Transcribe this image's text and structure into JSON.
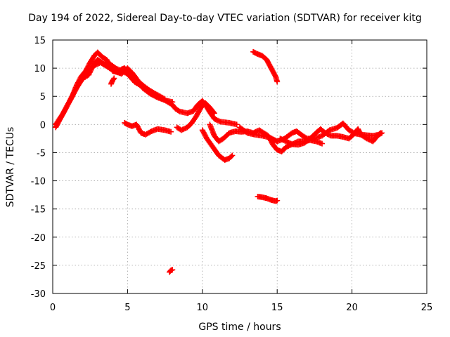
{
  "chart_data": {
    "type": "scatter",
    "title": "Day 194 of 2022, Sidereal Day-to-day VTEC variation (SDTVAR) for receiver kitg",
    "xlabel": "GPS time / hours",
    "ylabel": "SDTVAR / TECUs",
    "xlim": [
      0,
      25
    ],
    "ylim": [
      -30,
      15
    ],
    "xticks": [
      "0",
      "5",
      "10",
      "15",
      "20",
      "25"
    ],
    "yticks": [
      "15",
      "10",
      "5",
      "0",
      "-5",
      "-10",
      "-15",
      "-20",
      "-25",
      "-30"
    ],
    "grid": true,
    "marker_color": "#ff0000",
    "series": [
      {
        "name": "track-main-1",
        "points": [
          [
            0.2,
            0
          ],
          [
            0.4,
            0.8
          ],
          [
            0.7,
            2
          ],
          [
            1.0,
            3.5
          ],
          [
            1.3,
            5
          ],
          [
            1.6,
            7
          ],
          [
            1.9,
            8.5
          ],
          [
            2.2,
            9.5
          ],
          [
            2.5,
            11
          ],
          [
            2.8,
            12.3
          ],
          [
            3.0,
            12.8
          ],
          [
            3.3,
            12
          ],
          [
            3.6,
            11.5
          ],
          [
            3.8,
            10.5
          ],
          [
            4.0,
            9.5
          ],
          [
            4.3,
            9.3
          ],
          [
            4.6,
            9.8
          ],
          [
            4.8,
            10
          ],
          [
            5.0,
            9.5
          ],
          [
            5.3,
            9.2
          ],
          [
            5.6,
            8
          ],
          [
            6.0,
            7
          ],
          [
            6.5,
            6
          ],
          [
            7.0,
            5
          ],
          [
            7.5,
            4.3
          ],
          [
            8.0,
            3.5
          ],
          [
            8.2,
            2.8
          ],
          [
            8.5,
            2.3
          ],
          [
            9.0,
            2
          ],
          [
            9.4,
            2.4
          ],
          [
            9.7,
            3.5
          ],
          [
            10.0,
            4.2
          ],
          [
            10.2,
            3.5
          ],
          [
            10.5,
            2.2
          ],
          [
            10.8,
            1
          ],
          [
            11.2,
            0.5
          ],
          [
            11.8,
            0.3
          ],
          [
            12.3,
            0
          ]
        ]
      },
      {
        "name": "track-main-2",
        "points": [
          [
            2.0,
            8
          ],
          [
            2.4,
            9.5
          ],
          [
            2.8,
            10.5
          ],
          [
            3.2,
            11
          ],
          [
            3.5,
            10.5
          ],
          [
            3.8,
            10
          ],
          [
            4.0,
            9.8
          ],
          [
            4.3,
            9.3
          ],
          [
            4.6,
            9
          ],
          [
            5.0,
            10
          ],
          [
            5.5,
            8.5
          ],
          [
            6.0,
            6.5
          ],
          [
            6.5,
            5.5
          ],
          [
            7.0,
            4.8
          ],
          [
            7.5,
            4.3
          ],
          [
            8.0,
            4
          ]
        ]
      },
      {
        "name": "track-main-3",
        "points": [
          [
            0.2,
            -0.5
          ],
          [
            0.4,
            0.5
          ],
          [
            0.8,
            2.5
          ],
          [
            1.2,
            4.5
          ],
          [
            1.6,
            6.5
          ],
          [
            2.0,
            8.2
          ],
          [
            2.4,
            8.8
          ],
          [
            2.7,
            10.5
          ],
          [
            3.0,
            11.5
          ],
          [
            3.4,
            10.8
          ],
          [
            3.8,
            10.8
          ],
          [
            4.2,
            10
          ],
          [
            4.6,
            9.5
          ],
          [
            5.0,
            9
          ],
          [
            5.5,
            7.5
          ],
          [
            6.5,
            6
          ],
          [
            7.5,
            4.5
          ]
        ]
      },
      {
        "name": "track-aux-1",
        "points": [
          [
            3.9,
            7.2
          ],
          [
            4.0,
            7.8
          ],
          [
            4.1,
            8.2
          ]
        ]
      },
      {
        "name": "track-aux-2",
        "points": [
          [
            8.3,
            -0.5
          ],
          [
            8.6,
            -1
          ],
          [
            9.0,
            -0.5
          ],
          [
            9.3,
            0.3
          ],
          [
            9.6,
            1.5
          ],
          [
            9.9,
            3
          ],
          [
            10.2,
            3.8
          ],
          [
            10.5,
            3
          ],
          [
            10.8,
            2
          ]
        ]
      },
      {
        "name": "track-mid",
        "points": [
          [
            4.8,
            0.3
          ],
          [
            5.0,
            0
          ],
          [
            5.3,
            -0.3
          ],
          [
            5.6,
            0
          ],
          [
            5.9,
            -1.5
          ],
          [
            6.2,
            -1.8
          ],
          [
            6.6,
            -1.2
          ],
          [
            7.0,
            -0.8
          ],
          [
            7.5,
            -1
          ],
          [
            7.9,
            -1.3
          ]
        ]
      },
      {
        "name": "track-dip",
        "points": [
          [
            10.0,
            -1
          ],
          [
            10.3,
            -2.5
          ],
          [
            10.7,
            -4
          ],
          [
            11.1,
            -5.5
          ],
          [
            11.5,
            -6.3
          ],
          [
            11.8,
            -6
          ],
          [
            12.0,
            -5.5
          ]
        ]
      },
      {
        "name": "track-low-1",
        "points": [
          [
            10.5,
            0
          ],
          [
            10.8,
            -2
          ],
          [
            11.1,
            -3
          ],
          [
            11.4,
            -2.5
          ],
          [
            11.8,
            -1.5
          ],
          [
            12.2,
            -1.2
          ],
          [
            12.6,
            -1.3
          ],
          [
            13.0,
            -1.2
          ],
          [
            13.4,
            -1.5
          ],
          [
            13.8,
            -1
          ],
          [
            14.1,
            -1.5
          ],
          [
            14.4,
            -2
          ],
          [
            14.7,
            -3.5
          ],
          [
            15.0,
            -4.5
          ],
          [
            15.3,
            -4.8
          ],
          [
            15.6,
            -4
          ],
          [
            16.0,
            -3.5
          ],
          [
            16.4,
            -3
          ],
          [
            16.8,
            -3
          ],
          [
            17.2,
            -2.8
          ],
          [
            17.6,
            -3
          ],
          [
            18.0,
            -3.4
          ]
        ]
      },
      {
        "name": "track-low-2",
        "points": [
          [
            12.5,
            -0.5
          ],
          [
            13.0,
            -1.5
          ],
          [
            13.5,
            -1.8
          ],
          [
            14.0,
            -2
          ],
          [
            14.5,
            -2.3
          ],
          [
            15.0,
            -3
          ],
          [
            15.5,
            -2.5
          ],
          [
            16.0,
            -1.5
          ],
          [
            16.3,
            -1.2
          ],
          [
            16.7,
            -2
          ],
          [
            17.0,
            -2.5
          ],
          [
            17.5,
            -2.5
          ],
          [
            18.0,
            -2
          ],
          [
            18.5,
            -1
          ],
          [
            19.0,
            -0.6
          ],
          [
            19.4,
            0.2
          ],
          [
            19.8,
            -1
          ],
          [
            20.2,
            -1.6
          ],
          [
            20.6,
            -1.8
          ],
          [
            21.0,
            -1.9
          ],
          [
            21.4,
            -2
          ],
          [
            21.8,
            -1.8
          ],
          [
            22.0,
            -1.5
          ]
        ]
      },
      {
        "name": "track-low-3",
        "points": [
          [
            15.2,
            -2.5
          ],
          [
            15.6,
            -3
          ],
          [
            16.0,
            -3.5
          ],
          [
            16.4,
            -3.6
          ],
          [
            16.8,
            -3.3
          ],
          [
            17.2,
            -2.5
          ],
          [
            17.6,
            -1.5
          ],
          [
            17.9,
            -0.8
          ],
          [
            18.2,
            -1.5
          ],
          [
            18.6,
            -2
          ],
          [
            19.0,
            -2
          ],
          [
            19.4,
            -2.2
          ],
          [
            19.8,
            -2.5
          ],
          [
            20.2,
            -1.5
          ],
          [
            20.4,
            -0.8
          ],
          [
            20.6,
            -1.8
          ],
          [
            21.0,
            -2.5
          ],
          [
            21.4,
            -3
          ],
          [
            21.7,
            -2
          ],
          [
            21.9,
            -1.5
          ]
        ]
      },
      {
        "name": "track-arc",
        "points": [
          [
            13.4,
            12.9
          ],
          [
            13.7,
            12.5
          ],
          [
            14.0,
            12.2
          ],
          [
            14.3,
            11.5
          ],
          [
            14.5,
            10.5
          ],
          [
            14.7,
            9.5
          ],
          [
            14.9,
            8.5
          ],
          [
            15.0,
            7.6
          ]
        ]
      },
      {
        "name": "track-isolated-1",
        "points": [
          [
            13.7,
            -12.8
          ],
          [
            14.0,
            -12.9
          ],
          [
            14.3,
            -13.1
          ],
          [
            14.6,
            -13.4
          ],
          [
            14.9,
            -13.6
          ],
          [
            15.0,
            -13.5
          ]
        ]
      },
      {
        "name": "track-isolated-2",
        "points": [
          [
            7.8,
            -26.2
          ],
          [
            7.9,
            -25.9
          ],
          [
            8.0,
            -25.8
          ]
        ]
      }
    ]
  }
}
